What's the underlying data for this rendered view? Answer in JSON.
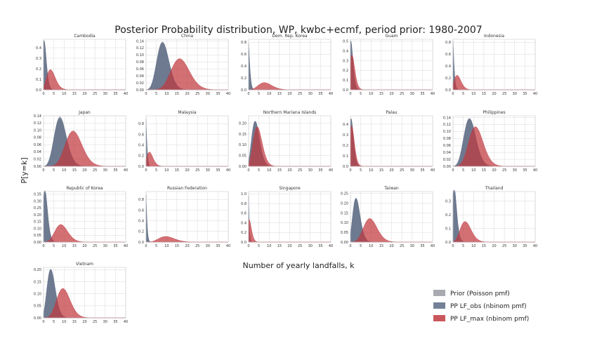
{
  "chart_data": {
    "type": "area",
    "title": "Posterior Probability distribution, WP, kwbc+ecmf, period prior: 1980-2007",
    "xlabel": "Number of yearly landfalls, k",
    "ylabel": "P[y=k]",
    "xlim": [
      0,
      40
    ],
    "xticks": [
      0,
      5,
      10,
      15,
      20,
      25,
      30,
      35,
      40
    ],
    "grid": true,
    "legend_placement": "bottom-right",
    "legend": [
      {
        "key": "prior",
        "label": "Prior (Poisson pmf)",
        "color": "#9a9aa5"
      },
      {
        "key": "obs",
        "label": "PP LF_obs (nbinom pmf)",
        "color": "#5c6b85"
      },
      {
        "key": "max",
        "label": "PP LF_max (nbinom pmf)",
        "color": "#c0393f"
      }
    ],
    "panels": [
      {
        "name": "Cambodia",
        "ylim": [
          0,
          0.48
        ],
        "yticks": [
          "0.0",
          "0.1",
          "0.2",
          "0.3",
          "0.4"
        ],
        "prior": {
          "mean": 0.8
        },
        "obs": {
          "mean": 0.8
        },
        "max": {
          "mean": 4.0,
          "r": 30
        }
      },
      {
        "name": "China",
        "ylim": [
          0,
          0.145
        ],
        "yticks": [
          "0.00",
          "0.02",
          "0.04",
          "0.06",
          "0.08",
          "0.10",
          "0.12",
          "0.14"
        ],
        "prior": {
          "mean": 8.5
        },
        "obs": {
          "mean": 8.5,
          "r": 300
        },
        "max": {
          "mean": 17.0,
          "r": 90
        }
      },
      {
        "name": "Dem. Rep. Korea",
        "ylim": [
          0,
          0.85
        ],
        "yticks": [
          "0.0",
          "0.2",
          "0.4",
          "0.6",
          "0.8"
        ],
        "prior": {
          "mean": 0.25
        },
        "obs": {
          "mean": 0.25
        },
        "max": {
          "mean": 8.5,
          "r": 25
        }
      },
      {
        "name": "Guam",
        "ylim": [
          0,
          0.52
        ],
        "yticks": [
          "0.0",
          "0.1",
          "0.2",
          "0.3",
          "0.4",
          "0.5"
        ],
        "prior": {
          "mean": 0.7
        },
        "obs": {
          "mean": 0.7
        },
        "max": {
          "mean": 1.3,
          "r": 30
        }
      },
      {
        "name": "Indonesia",
        "ylim": [
          0,
          0.85
        ],
        "yticks": [
          "0.0",
          "0.2",
          "0.4",
          "0.6",
          "0.8"
        ],
        "prior": {
          "mean": 0.2
        },
        "obs": {
          "mean": 0.2
        },
        "max": {
          "mean": 2.6,
          "r": 30
        }
      },
      {
        "name": "Japan",
        "ylim": [
          0,
          0.14
        ],
        "yticks": [
          "0.00",
          "0.02",
          "0.04",
          "0.06",
          "0.08",
          "0.10",
          "0.12",
          "0.14"
        ],
        "prior": {
          "mean": 8.5
        },
        "obs": {
          "mean": 8.5,
          "r": 120
        },
        "max": {
          "mean": 15.0,
          "r": 120
        }
      },
      {
        "name": "Malaysia",
        "ylim": [
          0,
          0.95
        ],
        "yticks": [
          "0.0",
          "0.2",
          "0.4",
          "0.6",
          "0.8"
        ],
        "prior": {
          "mean": 0.12
        },
        "obs": {
          "mean": 0.12
        },
        "max": {
          "mean": 2.2,
          "r": 30
        }
      },
      {
        "name": "Northern Mariana Islands",
        "ylim": [
          0,
          0.235
        ],
        "yticks": [
          "0.00",
          "0.05",
          "0.10",
          "0.15",
          "0.20"
        ],
        "prior": {
          "mean": 3.7
        },
        "obs": {
          "mean": 3.7
        },
        "max": {
          "mean": 4.7,
          "r": 200
        }
      },
      {
        "name": "Palau",
        "ylim": [
          0,
          0.48
        ],
        "yticks": [
          "0.0",
          "0.1",
          "0.2",
          "0.3",
          "0.4"
        ],
        "prior": {
          "mean": 0.85
        },
        "obs": {
          "mean": 0.85
        },
        "max": {
          "mean": 1.15,
          "r": 50
        }
      },
      {
        "name": "Philippines",
        "ylim": [
          0,
          0.145
        ],
        "yticks": [
          "0.00",
          "0.02",
          "0.04",
          "0.06",
          "0.08",
          "0.10",
          "0.12",
          "0.14"
        ],
        "prior": {
          "mean": 8.5
        },
        "obs": {
          "mean": 8.5,
          "r": 400
        },
        "max": {
          "mean": 11.5,
          "r": 130
        }
      },
      {
        "name": "Republic of Korea",
        "ylim": [
          0,
          0.37
        ],
        "yticks": [
          "0.00",
          "0.05",
          "0.10",
          "0.15",
          "0.20",
          "0.25",
          "0.30",
          "0.35"
        ],
        "prior": {
          "mean": 1.2
        },
        "obs": {
          "mean": 1.2
        },
        "max": {
          "mean": 9.0,
          "r": 100
        }
      },
      {
        "name": "Russian Federation",
        "ylim": [
          0,
          0.95
        ],
        "yticks": [
          "0.0",
          "0.2",
          "0.4",
          "0.6",
          "0.8"
        ],
        "prior": {
          "mean": 0.12
        },
        "obs": {
          "mean": 0.12
        },
        "max": {
          "mean": 10.5,
          "r": 25
        }
      },
      {
        "name": "Singapore",
        "ylim": [
          0,
          1.05
        ],
        "yticks": [
          "0.0",
          "0.2",
          "0.4",
          "0.6",
          "0.8",
          "1.0"
        ],
        "prior": {
          "mean": 0.04
        },
        "obs": {
          "mean": 0.04
        },
        "max": {
          "mean": 0.8,
          "r": 30
        }
      },
      {
        "name": "Taiwan",
        "ylim": [
          0,
          0.26
        ],
        "yticks": [
          "0.00",
          "0.05",
          "0.10",
          "0.15",
          "0.20",
          "0.25"
        ],
        "prior": {
          "mean": 3.2
        },
        "obs": {
          "mean": 3.2
        },
        "max": {
          "mean": 10.0,
          "r": 100
        }
      },
      {
        "name": "Thailand",
        "ylim": [
          0,
          0.37
        ],
        "yticks": [
          "0.0",
          "0.1",
          "0.2",
          "0.3"
        ],
        "prior": {
          "mean": 1.05
        },
        "obs": {
          "mean": 1.05
        },
        "max": {
          "mean": 6.5,
          "r": 60
        }
      },
      {
        "name": "Vietnam",
        "ylim": [
          0,
          0.21
        ],
        "yticks": [
          "0.00",
          "0.05",
          "0.10",
          "0.15",
          "0.20"
        ],
        "prior": {
          "mean": 4.0
        },
        "obs": {
          "mean": 4.0
        },
        "max": {
          "mean": 10.0,
          "r": 120
        }
      }
    ]
  }
}
